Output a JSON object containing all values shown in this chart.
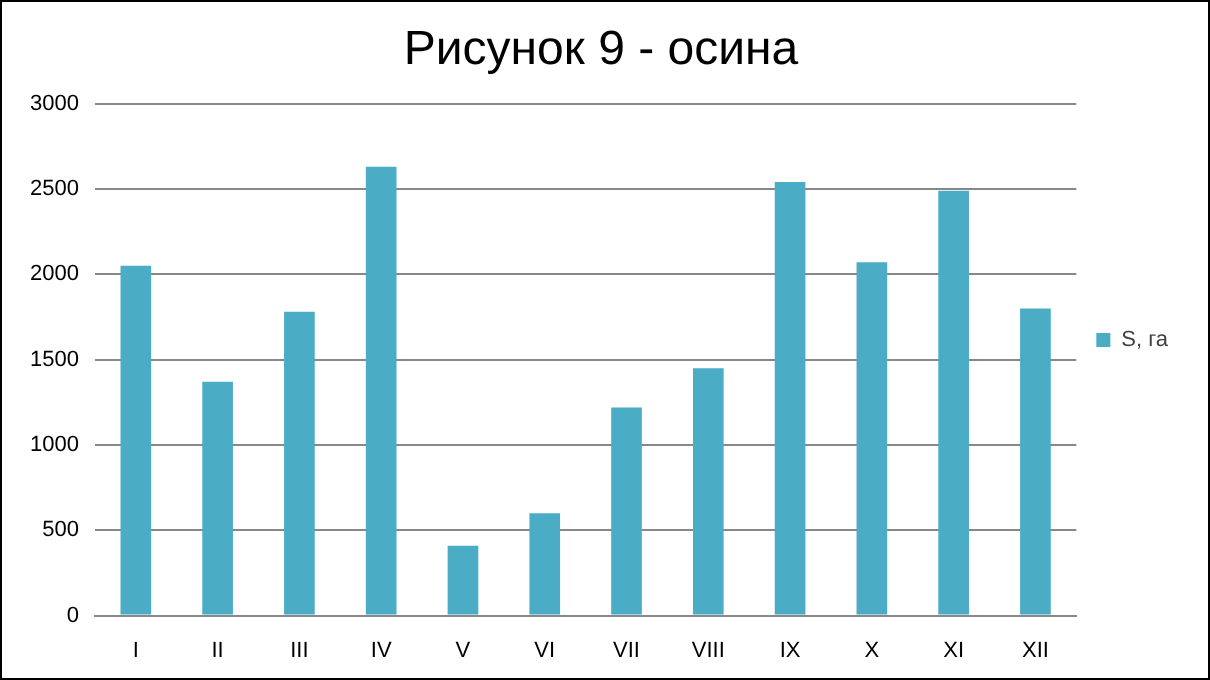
{
  "chart_data": {
    "type": "bar",
    "title": "Рисунок 9 - осина",
    "categories": [
      "I",
      "II",
      "III",
      "IV",
      "V",
      "VI",
      "VII",
      "VIII",
      "IX",
      "X",
      "XI",
      "XII"
    ],
    "series": [
      {
        "name": "S, га",
        "color": "#4bacc6",
        "values": [
          2050,
          1370,
          1780,
          2630,
          410,
          600,
          1220,
          1450,
          2540,
          2070,
          2490,
          1800
        ]
      }
    ],
    "ylim": [
      0,
      3000
    ],
    "yticks": [
      0,
      500,
      1000,
      1500,
      2000,
      2500,
      3000
    ],
    "grid": "y",
    "legend": "right"
  }
}
